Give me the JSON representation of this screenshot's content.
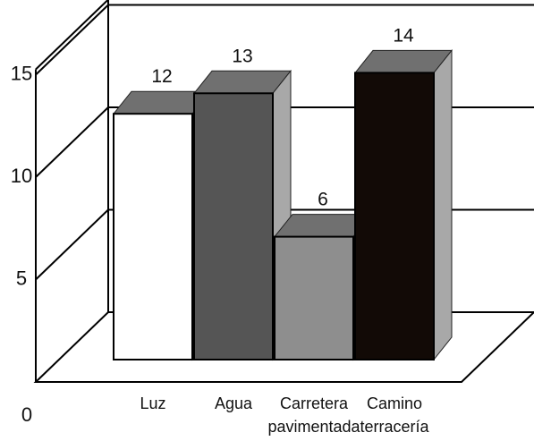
{
  "chart_data": {
    "type": "bar",
    "style": "3d",
    "categories": [
      [
        "Luz"
      ],
      [
        "Agua"
      ],
      [
        "Carretera",
        "pavimentada"
      ],
      [
        "Camino",
        "terracería"
      ]
    ],
    "values": [
      12,
      13,
      6,
      14
    ],
    "ylim": [
      0,
      15
    ],
    "yticks": [
      0,
      5,
      10,
      15
    ],
    "grid": true,
    "legend": "none",
    "bar_colors": [
      "#ffffff",
      "#555555",
      "#8e8e8e",
      "#120a06"
    ],
    "bar_side_color": "#a8a8a8",
    "bar_top_color": "#707070"
  }
}
